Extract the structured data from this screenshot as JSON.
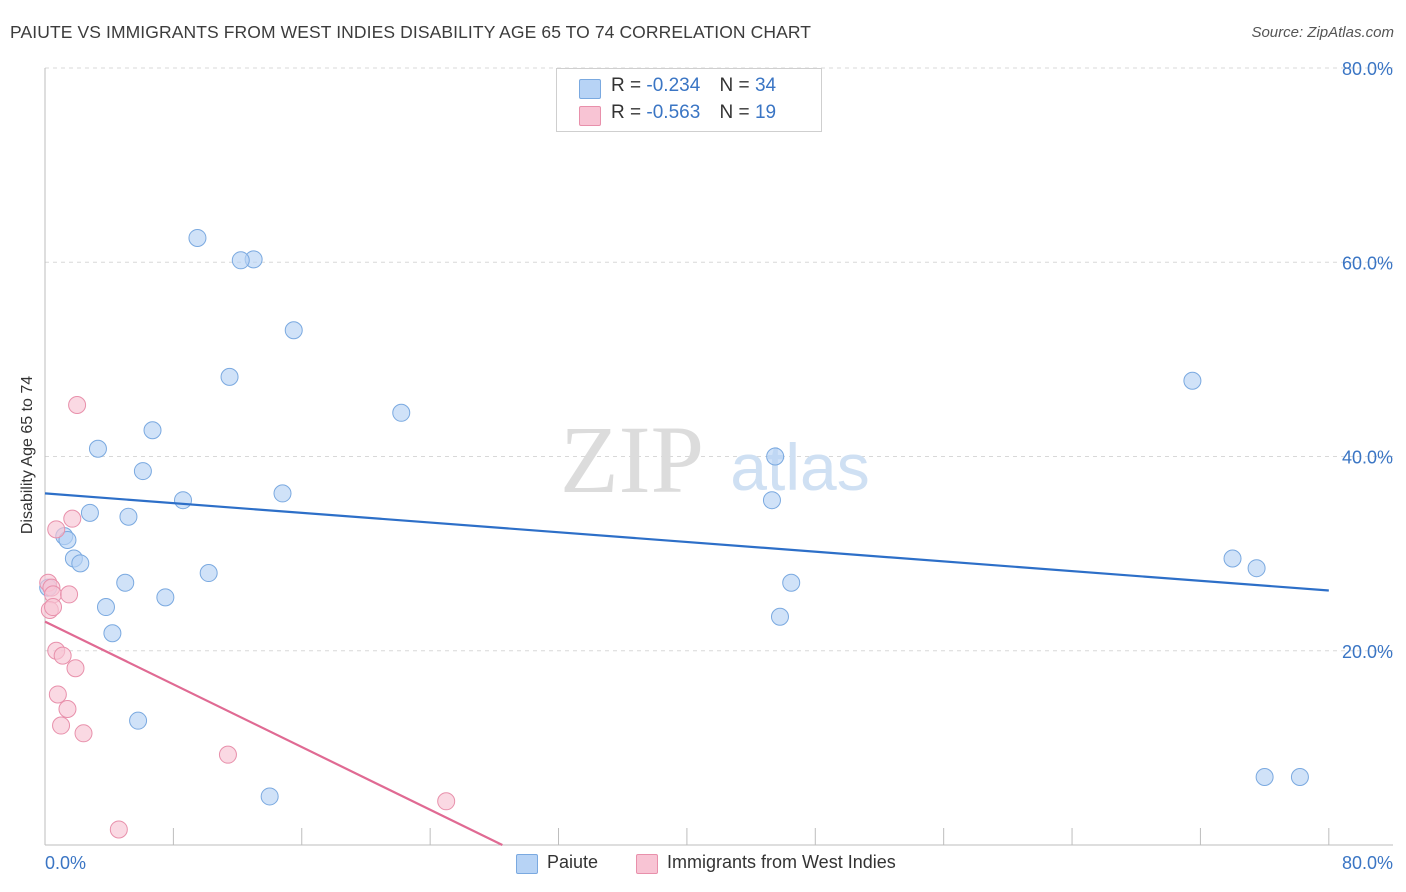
{
  "title": "PAIUTE VS IMMIGRANTS FROM WEST INDIES DISABILITY AGE 65 TO 74 CORRELATION CHART",
  "source": "Source: ZipAtlas.com",
  "watermark": {
    "zip": "ZIP",
    "atlas": "atlas"
  },
  "colors": {
    "paiute_fill": "#b7d3f5",
    "paiute_stroke": "#7aa9e0",
    "paiute_line": "#2d6fc8",
    "wi_fill": "#f8c4d4",
    "wi_stroke": "#e890ab",
    "wi_line": "#e06a93",
    "axis_tick_label": "#3a75c4",
    "grid": "#d8d8d8"
  },
  "legend": {
    "rows": [
      {
        "r_label": "R =",
        "r_value": "-0.234",
        "n_label": "N =",
        "n_value": "34"
      },
      {
        "r_label": "R =",
        "r_value": "-0.563",
        "n_label": "N =",
        "n_value": "19"
      }
    ]
  },
  "chart_data": {
    "type": "scatter",
    "xlabel": "",
    "ylabel": "Disability Age 65 to 74",
    "xlim": [
      0,
      84
    ],
    "ylim": [
      0,
      80
    ],
    "x_tick_labels": [
      "0.0%",
      "80.0%"
    ],
    "y_tick_labels": [
      "20.0%",
      "40.0%",
      "60.0%",
      "80.0%"
    ],
    "y_ticks": [
      20,
      40,
      60,
      80
    ],
    "grid": true,
    "legend_position": "bottom-center",
    "series": [
      {
        "name": "Paiute",
        "r": -0.234,
        "n": 34,
        "trend": {
          "x0": 0,
          "y0": 36.2,
          "x1": 80,
          "y1": 26.2
        },
        "points": [
          [
            9.5,
            62.5
          ],
          [
            13.0,
            60.3
          ],
          [
            12.2,
            60.2
          ],
          [
            15.5,
            53.0
          ],
          [
            11.5,
            48.2
          ],
          [
            22.2,
            44.5
          ],
          [
            6.7,
            42.7
          ],
          [
            3.3,
            40.8
          ],
          [
            6.1,
            38.5
          ],
          [
            8.6,
            35.5
          ],
          [
            14.8,
            36.2
          ],
          [
            2.8,
            34.2
          ],
          [
            5.2,
            33.8
          ],
          [
            1.2,
            31.8
          ],
          [
            1.4,
            31.4
          ],
          [
            1.8,
            29.5
          ],
          [
            2.2,
            29.0
          ],
          [
            10.2,
            28.0
          ],
          [
            5.0,
            27.0
          ],
          [
            7.5,
            25.5
          ],
          [
            3.8,
            24.5
          ],
          [
            4.2,
            21.8
          ],
          [
            0.2,
            26.5
          ],
          [
            5.8,
            12.8
          ],
          [
            14.0,
            5.0
          ],
          [
            71.5,
            47.8
          ],
          [
            45.5,
            40.0
          ],
          [
            45.3,
            35.5
          ],
          [
            46.5,
            27.0
          ],
          [
            45.8,
            23.5
          ],
          [
            74.0,
            29.5
          ],
          [
            75.5,
            28.5
          ],
          [
            78.2,
            7.0
          ],
          [
            76.0,
            7.0
          ]
        ]
      },
      {
        "name": "Immigrants from West Indies",
        "r": -0.563,
        "n": 19,
        "trend": {
          "x0": 0,
          "y0": 23.0,
          "x1": 28.5,
          "y1": 0.0
        },
        "points": [
          [
            2.0,
            45.3
          ],
          [
            1.7,
            33.6
          ],
          [
            0.7,
            32.5
          ],
          [
            0.2,
            27.0
          ],
          [
            0.4,
            26.5
          ],
          [
            0.5,
            25.8
          ],
          [
            1.5,
            25.8
          ],
          [
            0.3,
            24.2
          ],
          [
            0.5,
            24.5
          ],
          [
            0.7,
            20.0
          ],
          [
            1.1,
            19.5
          ],
          [
            1.9,
            18.2
          ],
          [
            0.8,
            15.5
          ],
          [
            1.4,
            14.0
          ],
          [
            1.0,
            12.3
          ],
          [
            2.4,
            11.5
          ],
          [
            11.4,
            9.3
          ],
          [
            25.0,
            4.5
          ],
          [
            4.6,
            1.6
          ]
        ]
      }
    ]
  }
}
